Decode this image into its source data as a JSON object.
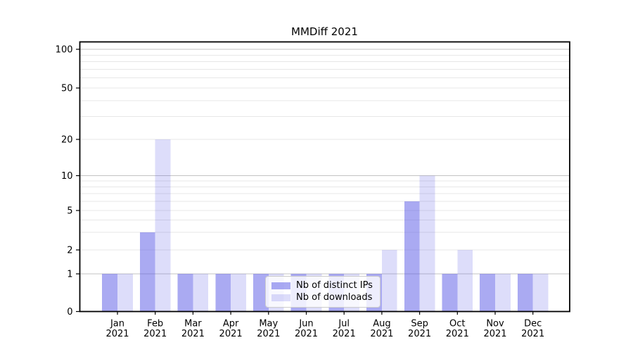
{
  "title": "MMDiff 2021",
  "chart_data": {
    "type": "bar",
    "categories": [
      "Jan",
      "Feb",
      "Mar",
      "Apr",
      "May",
      "Jun",
      "Jul",
      "Aug",
      "Sep",
      "Oct",
      "Nov",
      "Dec"
    ],
    "year_label": "2021",
    "series": [
      {
        "name": "Nb of distinct IPs",
        "color": "rgba(85,85,230,0.5)",
        "values": [
          1,
          3,
          1,
          1,
          1,
          1,
          1,
          1,
          6,
          1,
          1,
          1
        ]
      },
      {
        "name": "Nb of downloads",
        "color": "rgba(85,85,230,0.2)",
        "values": [
          1,
          20,
          1,
          1,
          1,
          1,
          1,
          2,
          10,
          2,
          1,
          1
        ]
      }
    ],
    "title": "MMDiff 2021",
    "xlabel": "",
    "ylabel": "",
    "yticks": [
      0,
      1,
      2,
      5,
      10,
      20,
      50,
      100
    ],
    "major_gridlines": [
      1,
      10,
      100
    ],
    "minor_gridlines": [
      2,
      3,
      4,
      5,
      6,
      7,
      8,
      9,
      20,
      30,
      40,
      50,
      60,
      70,
      80,
      90
    ],
    "ylim": [
      0,
      100
    ],
    "yscale": "log above 1, linear 0-1",
    "grid": true,
    "legend_position": "lower center"
  },
  "colors": {
    "axis": "#000000",
    "major_grid": "#c3c3c3",
    "minor_grid": "#e7e7e7",
    "tick_text": "#000000",
    "legend_border": "#cccccc",
    "legend_background": "rgba(255,255,255,0.8)"
  }
}
